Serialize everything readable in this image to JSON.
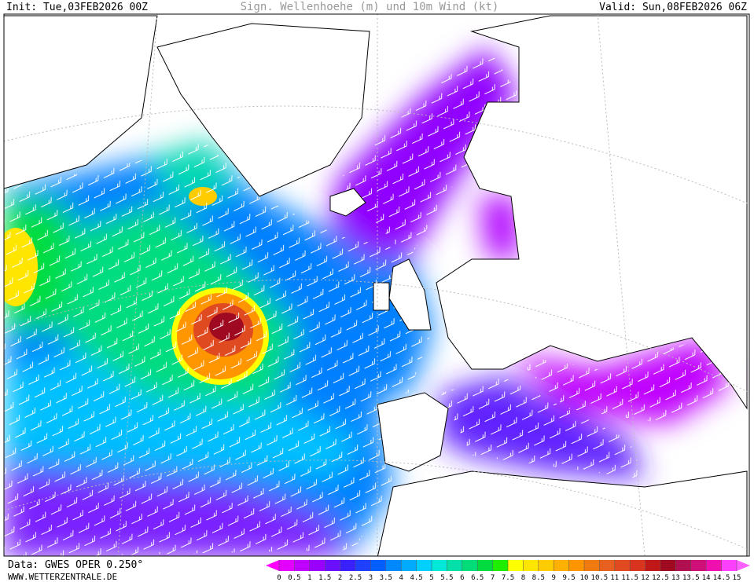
{
  "header": {
    "init": "Init: Tue,03FEB2026 00Z",
    "title": "Sign. Wellenhoehe (m) und 10m Wind (kt)",
    "valid": "Valid: Sun,08FEB2026 06Z"
  },
  "footer": {
    "source": "Data: GWES OPER 0.250°",
    "website": "WWW.WETTERZENTRALE.DE"
  },
  "legend": {
    "ticks": [
      0,
      0.5,
      1,
      1.5,
      2,
      2.5,
      3,
      3.5,
      4,
      4.5,
      5,
      5.5,
      6,
      6.5,
      7,
      7.5,
      8,
      8.5,
      9,
      9.5,
      10,
      10.5,
      11,
      11.5,
      12,
      12.5,
      13,
      13.5,
      14,
      14.5,
      15
    ],
    "colors": [
      "#ff00ff",
      "#e400ff",
      "#c000ff",
      "#9a00ff",
      "#6a10ff",
      "#3a20ff",
      "#2040ff",
      "#0060ff",
      "#0088ff",
      "#00aaff",
      "#00d0ff",
      "#00e8d8",
      "#00e0a8",
      "#00dc78",
      "#00dc40",
      "#20ee00",
      "#ffff00",
      "#ffe600",
      "#ffcc00",
      "#ffb000",
      "#ff9600",
      "#f07a10",
      "#e86020",
      "#e04a20",
      "#d83420",
      "#c01818",
      "#a00a20",
      "#b01050",
      "#d0107a",
      "#f010b0",
      "#ff40ff",
      "#ff60ff"
    ]
  }
}
